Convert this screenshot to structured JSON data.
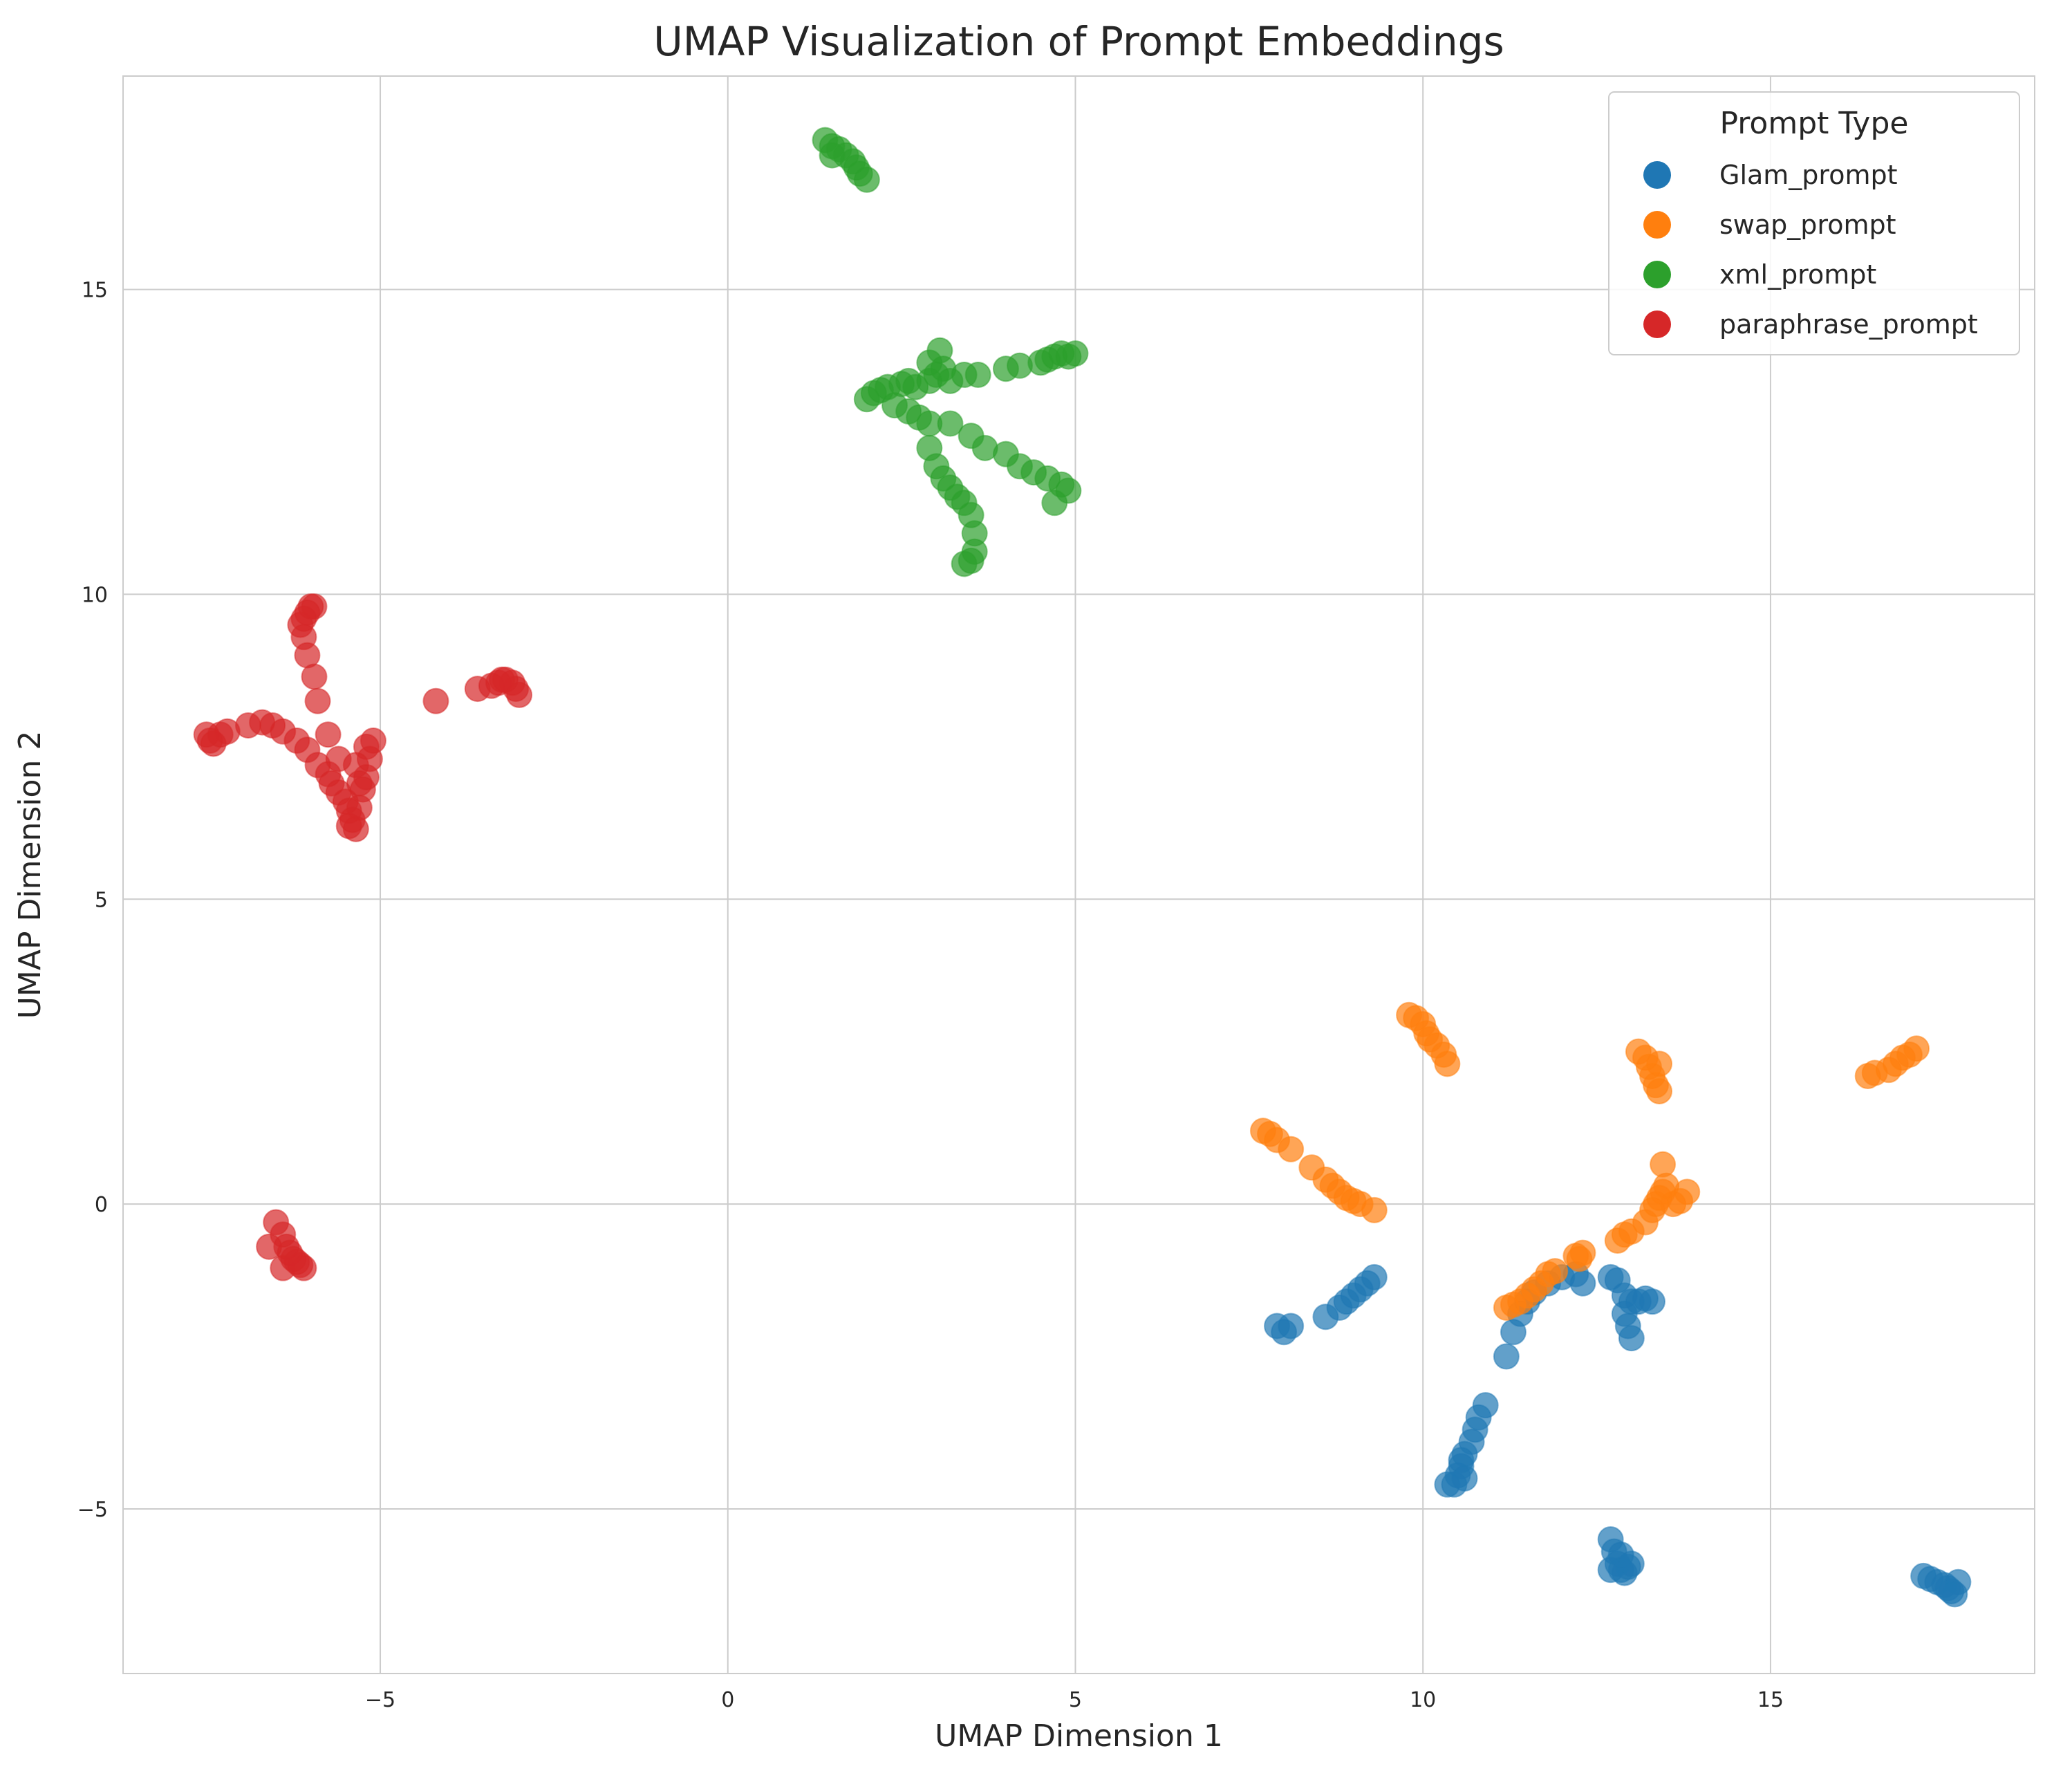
{
  "chart_data": {
    "type": "scatter",
    "title": "UMAP Visualization of Prompt Embeddings",
    "xlabel": "UMAP Dimension 1",
    "ylabel": "UMAP Dimension 2",
    "xlim": [
      -8.7,
      18.8
    ],
    "ylim": [
      -7.7,
      18.5
    ],
    "xticks": [
      -5,
      0,
      5,
      10,
      15
    ],
    "yticks": [
      -5,
      0,
      5,
      10,
      15
    ],
    "grid": true,
    "legend": {
      "title": "Prompt Type",
      "placement": "top-right"
    },
    "series": [
      {
        "name": "Glam_prompt",
        "color": "#1f77b4",
        "points": [
          [
            7.9,
            -2.0
          ],
          [
            8.0,
            -2.1
          ],
          [
            8.1,
            -2.0
          ],
          [
            8.6,
            -1.85
          ],
          [
            8.8,
            -1.7
          ],
          [
            8.9,
            -1.6
          ],
          [
            9.0,
            -1.5
          ],
          [
            9.1,
            -1.4
          ],
          [
            9.2,
            -1.3
          ],
          [
            9.3,
            -1.2
          ],
          [
            11.2,
            -2.5
          ],
          [
            11.3,
            -2.1
          ],
          [
            11.4,
            -1.8
          ],
          [
            11.5,
            -1.6
          ],
          [
            11.6,
            -1.45
          ],
          [
            11.8,
            -1.3
          ],
          [
            12.0,
            -1.2
          ],
          [
            12.2,
            -1.15
          ],
          [
            12.3,
            -1.3
          ],
          [
            12.7,
            -1.2
          ],
          [
            12.8,
            -1.25
          ],
          [
            12.9,
            -1.5
          ],
          [
            13.0,
            -1.6
          ],
          [
            12.9,
            -1.8
          ],
          [
            12.95,
            -2.0
          ],
          [
            13.0,
            -2.2
          ],
          [
            13.1,
            -1.6
          ],
          [
            13.2,
            -1.55
          ],
          [
            13.3,
            -1.6
          ],
          [
            10.9,
            -3.3
          ],
          [
            10.8,
            -3.5
          ],
          [
            10.75,
            -3.7
          ],
          [
            10.7,
            -3.9
          ],
          [
            10.6,
            -4.1
          ],
          [
            10.55,
            -4.3
          ],
          [
            10.5,
            -4.45
          ],
          [
            10.45,
            -4.6
          ],
          [
            10.35,
            -4.6
          ],
          [
            10.6,
            -4.5
          ],
          [
            10.55,
            -4.2
          ],
          [
            12.7,
            -5.5
          ],
          [
            12.75,
            -5.7
          ],
          [
            12.8,
            -5.9
          ],
          [
            12.85,
            -6.0
          ],
          [
            12.9,
            -6.05
          ],
          [
            12.95,
            -5.95
          ],
          [
            13.0,
            -5.9
          ],
          [
            12.7,
            -6.0
          ],
          [
            12.85,
            -5.75
          ],
          [
            17.2,
            -6.1
          ],
          [
            17.3,
            -6.15
          ],
          [
            17.4,
            -6.2
          ],
          [
            17.5,
            -6.25
          ],
          [
            17.55,
            -6.3
          ],
          [
            17.6,
            -6.35
          ],
          [
            17.7,
            -6.2
          ],
          [
            17.65,
            -6.4
          ]
        ]
      },
      {
        "name": "swap_prompt",
        "color": "#ff7f0e",
        "points": [
          [
            7.7,
            1.2
          ],
          [
            7.8,
            1.15
          ],
          [
            7.9,
            1.05
          ],
          [
            8.1,
            0.9
          ],
          [
            8.4,
            0.6
          ],
          [
            8.6,
            0.4
          ],
          [
            8.7,
            0.3
          ],
          [
            8.8,
            0.2
          ],
          [
            8.9,
            0.1
          ],
          [
            9.0,
            0.05
          ],
          [
            9.1,
            0.0
          ],
          [
            9.3,
            -0.1
          ],
          [
            9.8,
            3.1
          ],
          [
            9.9,
            3.05
          ],
          [
            10.0,
            2.95
          ],
          [
            10.05,
            2.8
          ],
          [
            10.1,
            2.7
          ],
          [
            10.2,
            2.6
          ],
          [
            10.3,
            2.45
          ],
          [
            10.35,
            2.3
          ],
          [
            13.1,
            2.5
          ],
          [
            13.2,
            2.4
          ],
          [
            13.25,
            2.25
          ],
          [
            13.3,
            2.1
          ],
          [
            13.35,
            1.95
          ],
          [
            13.4,
            1.85
          ],
          [
            13.4,
            2.3
          ],
          [
            16.4,
            2.1
          ],
          [
            16.5,
            2.15
          ],
          [
            16.7,
            2.2
          ],
          [
            16.8,
            2.3
          ],
          [
            16.9,
            2.4
          ],
          [
            17.0,
            2.45
          ],
          [
            17.1,
            2.55
          ],
          [
            11.2,
            -1.7
          ],
          [
            11.3,
            -1.65
          ],
          [
            11.4,
            -1.6
          ],
          [
            11.5,
            -1.5
          ],
          [
            11.6,
            -1.4
          ],
          [
            11.7,
            -1.3
          ],
          [
            11.8,
            -1.15
          ],
          [
            11.9,
            -1.1
          ],
          [
            12.2,
            -0.85
          ],
          [
            12.3,
            -0.8
          ],
          [
            12.25,
            -0.9
          ],
          [
            12.8,
            -0.6
          ],
          [
            12.9,
            -0.5
          ],
          [
            13.0,
            -0.45
          ],
          [
            13.2,
            -0.3
          ],
          [
            13.3,
            -0.1
          ],
          [
            13.35,
            0.0
          ],
          [
            13.4,
            0.1
          ],
          [
            13.45,
            0.2
          ],
          [
            13.5,
            0.3
          ],
          [
            13.6,
            0.0
          ],
          [
            13.7,
            0.05
          ],
          [
            13.8,
            0.2
          ],
          [
            13.45,
            0.65
          ]
        ]
      },
      {
        "name": "xml_prompt",
        "color": "#2ca02c",
        "points": [
          [
            1.4,
            17.45
          ],
          [
            1.5,
            17.35
          ],
          [
            1.6,
            17.3
          ],
          [
            1.7,
            17.2
          ],
          [
            1.8,
            17.1
          ],
          [
            1.85,
            17.0
          ],
          [
            1.9,
            16.9
          ],
          [
            2.0,
            16.8
          ],
          [
            1.5,
            17.2
          ],
          [
            2.0,
            13.2
          ],
          [
            2.1,
            13.3
          ],
          [
            2.2,
            13.35
          ],
          [
            2.3,
            13.4
          ],
          [
            2.5,
            13.45
          ],
          [
            2.6,
            13.5
          ],
          [
            2.7,
            13.4
          ],
          [
            2.9,
            13.5
          ],
          [
            3.0,
            13.6
          ],
          [
            3.1,
            13.7
          ],
          [
            2.9,
            13.8
          ],
          [
            3.05,
            14.0
          ],
          [
            3.2,
            13.5
          ],
          [
            3.4,
            13.6
          ],
          [
            3.6,
            13.6
          ],
          [
            4.0,
            13.7
          ],
          [
            4.2,
            13.75
          ],
          [
            4.5,
            13.8
          ],
          [
            4.6,
            13.85
          ],
          [
            4.7,
            13.9
          ],
          [
            4.8,
            13.95
          ],
          [
            4.9,
            13.9
          ],
          [
            5.0,
            13.95
          ],
          [
            2.4,
            13.1
          ],
          [
            2.6,
            13.0
          ],
          [
            2.75,
            12.9
          ],
          [
            2.9,
            12.8
          ],
          [
            3.2,
            12.8
          ],
          [
            3.5,
            12.6
          ],
          [
            3.7,
            12.4
          ],
          [
            4.0,
            12.3
          ],
          [
            4.2,
            12.1
          ],
          [
            4.4,
            12.0
          ],
          [
            4.6,
            11.9
          ],
          [
            4.8,
            11.8
          ],
          [
            4.9,
            11.7
          ],
          [
            4.7,
            11.5
          ],
          [
            2.9,
            12.4
          ],
          [
            3.0,
            12.1
          ],
          [
            3.1,
            11.9
          ],
          [
            3.2,
            11.75
          ],
          [
            3.3,
            11.6
          ],
          [
            3.4,
            11.5
          ],
          [
            3.5,
            11.3
          ],
          [
            3.55,
            11.0
          ],
          [
            3.55,
            10.7
          ],
          [
            3.5,
            10.55
          ],
          [
            3.4,
            10.5
          ]
        ]
      },
      {
        "name": "paraphrase_prompt",
        "color": "#d62728",
        "points": [
          [
            -7.5,
            7.7
          ],
          [
            -7.45,
            7.6
          ],
          [
            -7.4,
            7.55
          ],
          [
            -7.3,
            7.7
          ],
          [
            -7.2,
            7.75
          ],
          [
            -6.9,
            7.85
          ],
          [
            -6.7,
            7.9
          ],
          [
            -6.55,
            7.85
          ],
          [
            -6.4,
            7.75
          ],
          [
            -6.2,
            7.6
          ],
          [
            -6.05,
            7.45
          ],
          [
            -5.9,
            7.2
          ],
          [
            -5.75,
            7.05
          ],
          [
            -5.7,
            6.9
          ],
          [
            -5.6,
            6.75
          ],
          [
            -5.5,
            6.6
          ],
          [
            -5.45,
            6.45
          ],
          [
            -5.4,
            6.3
          ],
          [
            -5.35,
            6.15
          ],
          [
            -5.45,
            6.2
          ],
          [
            -5.3,
            6.5
          ],
          [
            -5.25,
            6.8
          ],
          [
            -5.2,
            7.0
          ],
          [
            -5.15,
            7.3
          ],
          [
            -5.1,
            7.6
          ],
          [
            -5.2,
            7.5
          ],
          [
            -5.35,
            7.2
          ],
          [
            -5.3,
            6.9
          ],
          [
            -5.75,
            7.7
          ],
          [
            -5.6,
            7.3
          ],
          [
            -6.0,
            9.8
          ],
          [
            -6.05,
            9.7
          ],
          [
            -6.1,
            9.6
          ],
          [
            -6.15,
            9.5
          ],
          [
            -6.1,
            9.3
          ],
          [
            -6.05,
            9.0
          ],
          [
            -5.95,
            8.65
          ],
          [
            -5.9,
            8.25
          ],
          [
            -5.95,
            9.8
          ],
          [
            -4.2,
            8.25
          ],
          [
            -3.6,
            8.45
          ],
          [
            -3.4,
            8.5
          ],
          [
            -3.3,
            8.55
          ],
          [
            -3.2,
            8.6
          ],
          [
            -3.1,
            8.55
          ],
          [
            -3.05,
            8.45
          ],
          [
            -3.0,
            8.35
          ],
          [
            -3.25,
            8.6
          ],
          [
            -6.5,
            -0.3
          ],
          [
            -6.4,
            -0.5
          ],
          [
            -6.35,
            -0.7
          ],
          [
            -6.3,
            -0.8
          ],
          [
            -6.25,
            -0.9
          ],
          [
            -6.2,
            -0.95
          ],
          [
            -6.15,
            -1.0
          ],
          [
            -6.1,
            -1.05
          ],
          [
            -6.4,
            -1.05
          ],
          [
            -6.6,
            -0.7
          ]
        ]
      }
    ]
  }
}
